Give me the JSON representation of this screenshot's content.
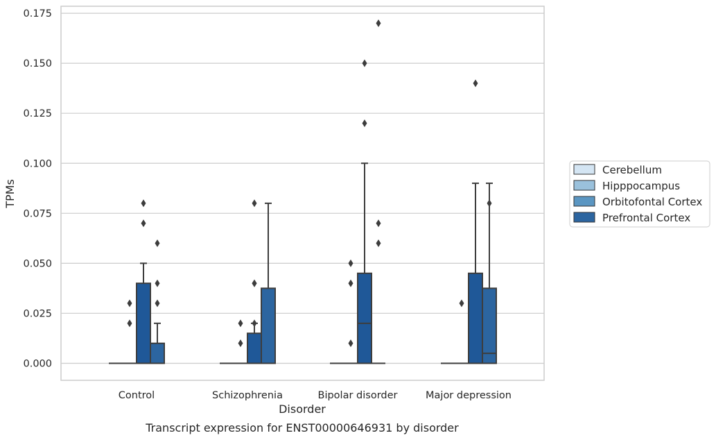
{
  "chart_data": {
    "type": "box",
    "xlabel": "Disorder",
    "ylabel": "TPMs",
    "caption": "Transcript expression for ENST00000646931 by disorder",
    "ylim": [
      -0.0085,
      0.1785
    ],
    "yticks": [
      "0.000",
      "0.025",
      "0.050",
      "0.075",
      "0.100",
      "0.125",
      "0.150",
      "0.175"
    ],
    "ytick_values": [
      0,
      0.025,
      0.05,
      0.075,
      0.1,
      0.125,
      0.15,
      0.175
    ],
    "grid": "horizontal",
    "legend_position": "right",
    "categories": [
      "Control",
      "Schizophrenia",
      "Bipolar disorder",
      "Major depression"
    ],
    "series": [
      {
        "name": "Cerebellum",
        "color": "#d4e5f3",
        "boxes": [
          {
            "q1": 0,
            "median": 0,
            "q3": 0,
            "whisker_low": 0,
            "whisker_high": 0,
            "outliers": []
          },
          {
            "q1": 0,
            "median": 0,
            "q3": 0,
            "whisker_low": 0,
            "whisker_high": 0,
            "outliers": []
          },
          {
            "q1": 0,
            "median": 0,
            "q3": 0,
            "whisker_low": 0,
            "whisker_high": 0,
            "outliers": []
          },
          {
            "q1": 0,
            "median": 0,
            "q3": 0,
            "whisker_low": 0,
            "whisker_high": 0,
            "outliers": []
          }
        ]
      },
      {
        "name": "Hipppocampus",
        "color": "#9ac1dc",
        "boxes": [
          {
            "q1": 0,
            "median": 0,
            "q3": 0,
            "whisker_low": 0,
            "whisker_high": 0,
            "outliers": [
              0.02,
              0.03
            ]
          },
          {
            "q1": 0,
            "median": 0,
            "q3": 0,
            "whisker_low": 0,
            "whisker_high": 0,
            "outliers": [
              0.01,
              0.02
            ]
          },
          {
            "q1": 0,
            "median": 0,
            "q3": 0,
            "whisker_low": 0,
            "whisker_high": 0,
            "outliers": [
              0.01,
              0.04,
              0.05
            ]
          },
          {
            "q1": 0,
            "median": 0,
            "q3": 0,
            "whisker_low": 0,
            "whisker_high": 0,
            "outliers": [
              0.03
            ]
          }
        ]
      },
      {
        "name": "Orbitofontal Cortex",
        "color": "#5b96c2",
        "boxes": [
          {
            "q1": 0,
            "median": 0,
            "q3": 0,
            "whisker_low": 0,
            "whisker_high": 0,
            "outliers": [
              0.02,
              0.07,
              0.08
            ]
          },
          {
            "q1": 0,
            "median": 0,
            "q3": 0,
            "whisker_low": 0,
            "whisker_high": 0,
            "outliers": [
              0.02,
              0.04
            ]
          },
          {
            "q1": 0,
            "median": 0,
            "q3": 0,
            "whisker_low": 0,
            "whisker_high": 0,
            "outliers": [
              0.15
            ]
          },
          {
            "q1": 0,
            "median": 0,
            "q3": 0,
            "whisker_low": 0,
            "whisker_high": 0,
            "outliers": [
              0.03
            ]
          }
        ]
      },
      {
        "name": "Prefrontal Cortex",
        "color": "#2c65a0",
        "boxes": [
          {
            "q1": 0,
            "median": 0,
            "q3": 0.01,
            "whisker_low": 0,
            "whisker_high": 0.02,
            "outliers": [
              0.03,
              0.04,
              0.06
            ]
          },
          {
            "q1": 0,
            "median": 0,
            "q3": 0.0375,
            "whisker_low": 0,
            "whisker_high": 0.08,
            "outliers": []
          },
          {
            "q1": 0,
            "median": 0,
            "q3": 0,
            "whisker_low": 0,
            "whisker_high": 0,
            "outliers": [
              0.06,
              0.07,
              0.17
            ]
          },
          {
            "q1": 0,
            "median": 0,
            "q3": 0,
            "whisker_low": 0,
            "whisker_high": 0,
            "outliers": [
              0.03,
              0.08
            ]
          }
        ]
      },
      {
        "name": "",
        "color": "#1f5898",
        "boxes": [
          {
            "q1": 0,
            "median": 0,
            "q3": 0.04,
            "whisker_low": 0,
            "whisker_high": 0.05,
            "outliers": []
          },
          {
            "q1": 0,
            "median": 0,
            "q3": 0.015,
            "whisker_low": 0,
            "whisker_high": 0.02,
            "outliers": [
              0.04,
              0.08
            ]
          },
          {
            "q1": 0,
            "median": 0.02,
            "q3": 0.045,
            "whisker_low": 0,
            "whisker_high": 0.1,
            "outliers": [
              0.12
            ]
          },
          {
            "q1": 0,
            "median": 0,
            "q3": 0.045,
            "whisker_low": 0,
            "whisker_high": 0.09,
            "outliers": [
              0.14
            ]
          }
        ]
      },
      {
        "name": "",
        "color": "#2c65a0",
        "boxes": [
          {
            "q1": 0,
            "median": 0,
            "q3": 0,
            "whisker_low": 0,
            "whisker_high": 0,
            "outliers": []
          },
          {
            "q1": 0,
            "median": 0,
            "q3": 0,
            "whisker_low": 0,
            "whisker_high": 0,
            "outliers": []
          },
          {
            "q1": 0,
            "median": 0,
            "q3": 0,
            "whisker_low": 0,
            "whisker_high": 0,
            "outliers": []
          },
          {
            "q1": 0,
            "median": 0.005,
            "q3": 0.0375,
            "whisker_low": 0,
            "whisker_high": 0.09,
            "outliers": []
          }
        ]
      }
    ],
    "legend": [
      {
        "name": "Cerebellum",
        "color": "#d4e5f3"
      },
      {
        "name": "Hipppocampus",
        "color": "#9ac1dc"
      },
      {
        "name": "Orbitofontal Cortex",
        "color": "#5b96c2"
      },
      {
        "name": "Prefrontal Cortex",
        "color": "#2c65a0"
      }
    ]
  }
}
